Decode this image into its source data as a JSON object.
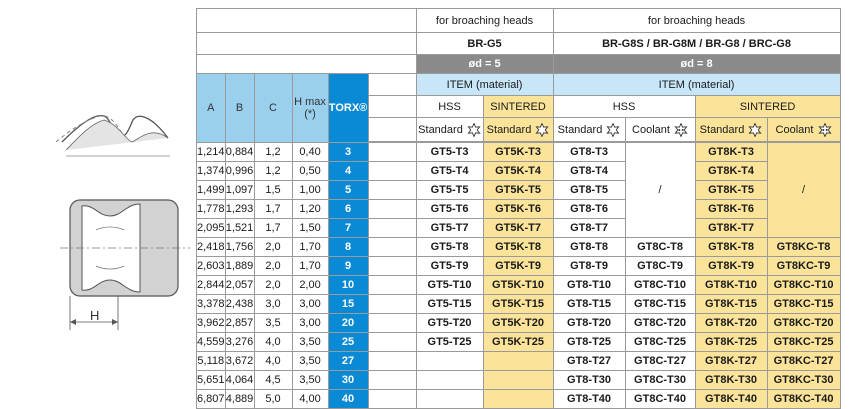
{
  "groups": [
    {
      "title": "for broaching heads",
      "model": "BR-G5",
      "diameter": "ød = 5"
    },
    {
      "title": "for broaching heads",
      "model": "BR-G8S / BR-G8M / BR-G8 / BRC-G8",
      "diameter": "ød = 8"
    }
  ],
  "item_label": "ITEM (material)",
  "material_labels": {
    "hss": "HSS",
    "sintered": "SINTERED"
  },
  "sub_labels": {
    "standard": "Standard",
    "coolant": "Coolant"
  },
  "columns": {
    "a": "A",
    "b": "B",
    "c": "C",
    "hmax": "H max",
    "hmax_note": "(*)",
    "torx": "TORX®"
  },
  "drawing_label": "H",
  "slash": "/",
  "rows": [
    {
      "a": "1,214",
      "b": "0,884",
      "c": "1,2",
      "h": "0,40",
      "torx": "3",
      "g5_hss": "GT5-T3",
      "g5_sin": "GT5K-T3",
      "g8_hss_std": "GT8-T3",
      "g8_hss_cool": "",
      "g8_sin_std": "GT8K-T3",
      "g8_sin_cool": ""
    },
    {
      "a": "1,374",
      "b": "0,996",
      "c": "1,2",
      "h": "0,50",
      "torx": "4",
      "g5_hss": "GT5-T4",
      "g5_sin": "GT5K-T4",
      "g8_hss_std": "GT8-T4",
      "g8_hss_cool": "",
      "g8_sin_std": "GT8K-T4",
      "g8_sin_cool": ""
    },
    {
      "a": "1,499",
      "b": "1,097",
      "c": "1,5",
      "h": "1,00",
      "torx": "5",
      "g5_hss": "GT5-T5",
      "g5_sin": "GT5K-T5",
      "g8_hss_std": "GT8-T5",
      "g8_hss_cool": "",
      "g8_sin_std": "GT8K-T5",
      "g8_sin_cool": ""
    },
    {
      "a": "1,778",
      "b": "1,293",
      "c": "1,7",
      "h": "1,20",
      "torx": "6",
      "g5_hss": "GT5-T6",
      "g5_sin": "GT5K-T6",
      "g8_hss_std": "GT8-T6",
      "g8_hss_cool": "",
      "g8_sin_std": "GT8K-T6",
      "g8_sin_cool": ""
    },
    {
      "a": "2,095",
      "b": "1,521",
      "c": "1,7",
      "h": "1,50",
      "torx": "7",
      "g5_hss": "GT5-T7",
      "g5_sin": "GT5K-T7",
      "g8_hss_std": "GT8-T7",
      "g8_hss_cool": "",
      "g8_sin_std": "GT8K-T7",
      "g8_sin_cool": ""
    },
    {
      "a": "2,418",
      "b": "1,756",
      "c": "2,0",
      "h": "1,70",
      "torx": "8",
      "g5_hss": "GT5-T8",
      "g5_sin": "GT5K-T8",
      "g8_hss_std": "GT8-T8",
      "g8_hss_cool": "GT8C-T8",
      "g8_sin_std": "GT8K-T8",
      "g8_sin_cool": "GT8KC-T8"
    },
    {
      "a": "2,603",
      "b": "1,889",
      "c": "2,0",
      "h": "1,70",
      "torx": "9",
      "g5_hss": "GT5-T9",
      "g5_sin": "GT5K-T9",
      "g8_hss_std": "GT8-T9",
      "g8_hss_cool": "GT8C-T9",
      "g8_sin_std": "GT8K-T9",
      "g8_sin_cool": "GT8KC-T9"
    },
    {
      "a": "2,844",
      "b": "2,057",
      "c": "2,0",
      "h": "2,00",
      "torx": "10",
      "g5_hss": "GT5-T10",
      "g5_sin": "GT5K-T10",
      "g8_hss_std": "GT8-T10",
      "g8_hss_cool": "GT8C-T10",
      "g8_sin_std": "GT8K-T10",
      "g8_sin_cool": "GT8KC-T10"
    },
    {
      "a": "3,378",
      "b": "2,438",
      "c": "3,0",
      "h": "3,00",
      "torx": "15",
      "g5_hss": "GT5-T15",
      "g5_sin": "GT5K-T15",
      "g8_hss_std": "GT8-T15",
      "g8_hss_cool": "GT8C-T15",
      "g8_sin_std": "GT8K-T15",
      "g8_sin_cool": "GT8KC-T15"
    },
    {
      "a": "3,962",
      "b": "2,857",
      "c": "3,5",
      "h": "3,00",
      "torx": "20",
      "g5_hss": "GT5-T20",
      "g5_sin": "GT5K-T20",
      "g8_hss_std": "GT8-T20",
      "g8_hss_cool": "GT8C-T20",
      "g8_sin_std": "GT8K-T20",
      "g8_sin_cool": "GT8KC-T20"
    },
    {
      "a": "4,559",
      "b": "3,276",
      "c": "4,0",
      "h": "3,50",
      "torx": "25",
      "g5_hss": "GT5-T25",
      "g5_sin": "GT5K-T25",
      "g8_hss_std": "GT8-T25",
      "g8_hss_cool": "GT8C-T25",
      "g8_sin_std": "GT8K-T25",
      "g8_sin_cool": "GT8KC-T25"
    },
    {
      "a": "5,118",
      "b": "3,672",
      "c": "4,0",
      "h": "3,50",
      "torx": "27",
      "g5_hss": "",
      "g5_sin": "",
      "g8_hss_std": "GT8-T27",
      "g8_hss_cool": "GT8C-T27",
      "g8_sin_std": "GT8K-T27",
      "g8_sin_cool": "GT8KC-T27"
    },
    {
      "a": "5,651",
      "b": "4,064",
      "c": "4,5",
      "h": "3,50",
      "torx": "30",
      "g5_hss": "",
      "g5_sin": "",
      "g8_hss_std": "GT8-T30",
      "g8_hss_cool": "GT8C-T30",
      "g8_sin_std": "GT8K-T30",
      "g8_sin_cool": "GT8KC-T30"
    },
    {
      "a": "6,807",
      "b": "4,889",
      "c": "5,0",
      "h": "4,00",
      "torx": "40",
      "g5_hss": "",
      "g5_sin": "",
      "g8_hss_std": "GT8-T40",
      "g8_hss_cool": "GT8C-T40",
      "g8_sin_std": "GT8K-T40",
      "g8_sin_cool": "GT8KC-T40"
    }
  ],
  "colors": {
    "blue_header": "#9bcfee",
    "torx_blue": "#0a8ad4",
    "sintered_yellow": "#fbe49a",
    "gray_band": "#8a8a8a",
    "item_band": "#c7e6f8"
  }
}
